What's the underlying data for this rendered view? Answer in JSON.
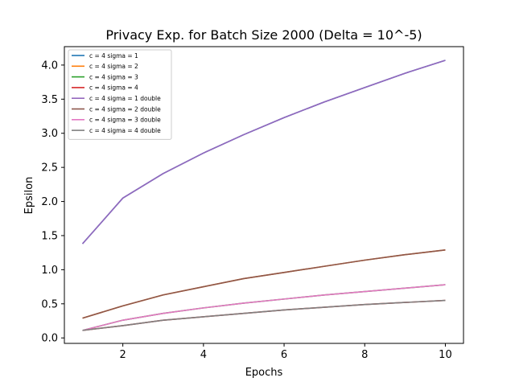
{
  "chart_data": {
    "type": "line",
    "title": "Privacy Exp. for Batch Size 2000 (Delta = 10^-5)",
    "xlabel": "Epochs",
    "ylabel": "Epsilon",
    "xlim": [
      0.55,
      10.45
    ],
    "ylim": [
      -0.08,
      4.27
    ],
    "xticks": [
      2,
      4,
      6,
      8,
      10
    ],
    "yticks": [
      0.0,
      0.5,
      1.0,
      1.5,
      2.0,
      2.5,
      3.0,
      3.5,
      4.0
    ],
    "ytick_labels": [
      "0.0",
      "0.5",
      "1.0",
      "1.5",
      "2.0",
      "2.5",
      "3.0",
      "3.5",
      "4.0"
    ],
    "xtick_labels": [
      "2",
      "4",
      "6",
      "8",
      "10"
    ],
    "grid": false,
    "legend_position": "top-left",
    "x": [
      1,
      2,
      3,
      4,
      5,
      6,
      7,
      8,
      9,
      10
    ],
    "series": [
      {
        "name": "c = 4 sigma = 1",
        "color": "#1f77b4",
        "values": [
          1.38,
          2.05,
          2.41,
          2.71,
          2.98,
          3.23,
          3.46,
          3.67,
          3.88,
          4.07
        ]
      },
      {
        "name": "c = 4 sigma = 2",
        "color": "#ff7f0e",
        "values": [
          0.29,
          0.47,
          0.63,
          0.75,
          0.87,
          0.96,
          1.05,
          1.14,
          1.22,
          1.29
        ]
      },
      {
        "name": "c = 4 sigma = 3",
        "color": "#2ca02c",
        "values": [
          0.11,
          0.26,
          0.36,
          0.44,
          0.51,
          0.57,
          0.63,
          0.68,
          0.73,
          0.78
        ]
      },
      {
        "name": "c = 4 sigma = 4",
        "color": "#d62728",
        "values": [
          0.11,
          0.18,
          0.26,
          0.31,
          0.36,
          0.41,
          0.45,
          0.49,
          0.52,
          0.55
        ]
      },
      {
        "name": "c = 4 sigma = 1 double",
        "color": "#9467bd",
        "values": [
          1.38,
          2.05,
          2.41,
          2.71,
          2.98,
          3.23,
          3.46,
          3.67,
          3.88,
          4.07
        ]
      },
      {
        "name": "c = 4 sigma = 2 double",
        "color": "#8c564b",
        "values": [
          0.29,
          0.47,
          0.63,
          0.75,
          0.87,
          0.96,
          1.05,
          1.14,
          1.22,
          1.29
        ]
      },
      {
        "name": "c = 4 sigma = 3 double",
        "color": "#e377c2",
        "values": [
          0.11,
          0.26,
          0.36,
          0.44,
          0.51,
          0.57,
          0.63,
          0.68,
          0.73,
          0.78
        ]
      },
      {
        "name": "c = 4 sigma = 4 double",
        "color": "#7f7f7f",
        "values": [
          0.11,
          0.18,
          0.26,
          0.31,
          0.36,
          0.41,
          0.45,
          0.49,
          0.52,
          0.55
        ]
      }
    ]
  }
}
